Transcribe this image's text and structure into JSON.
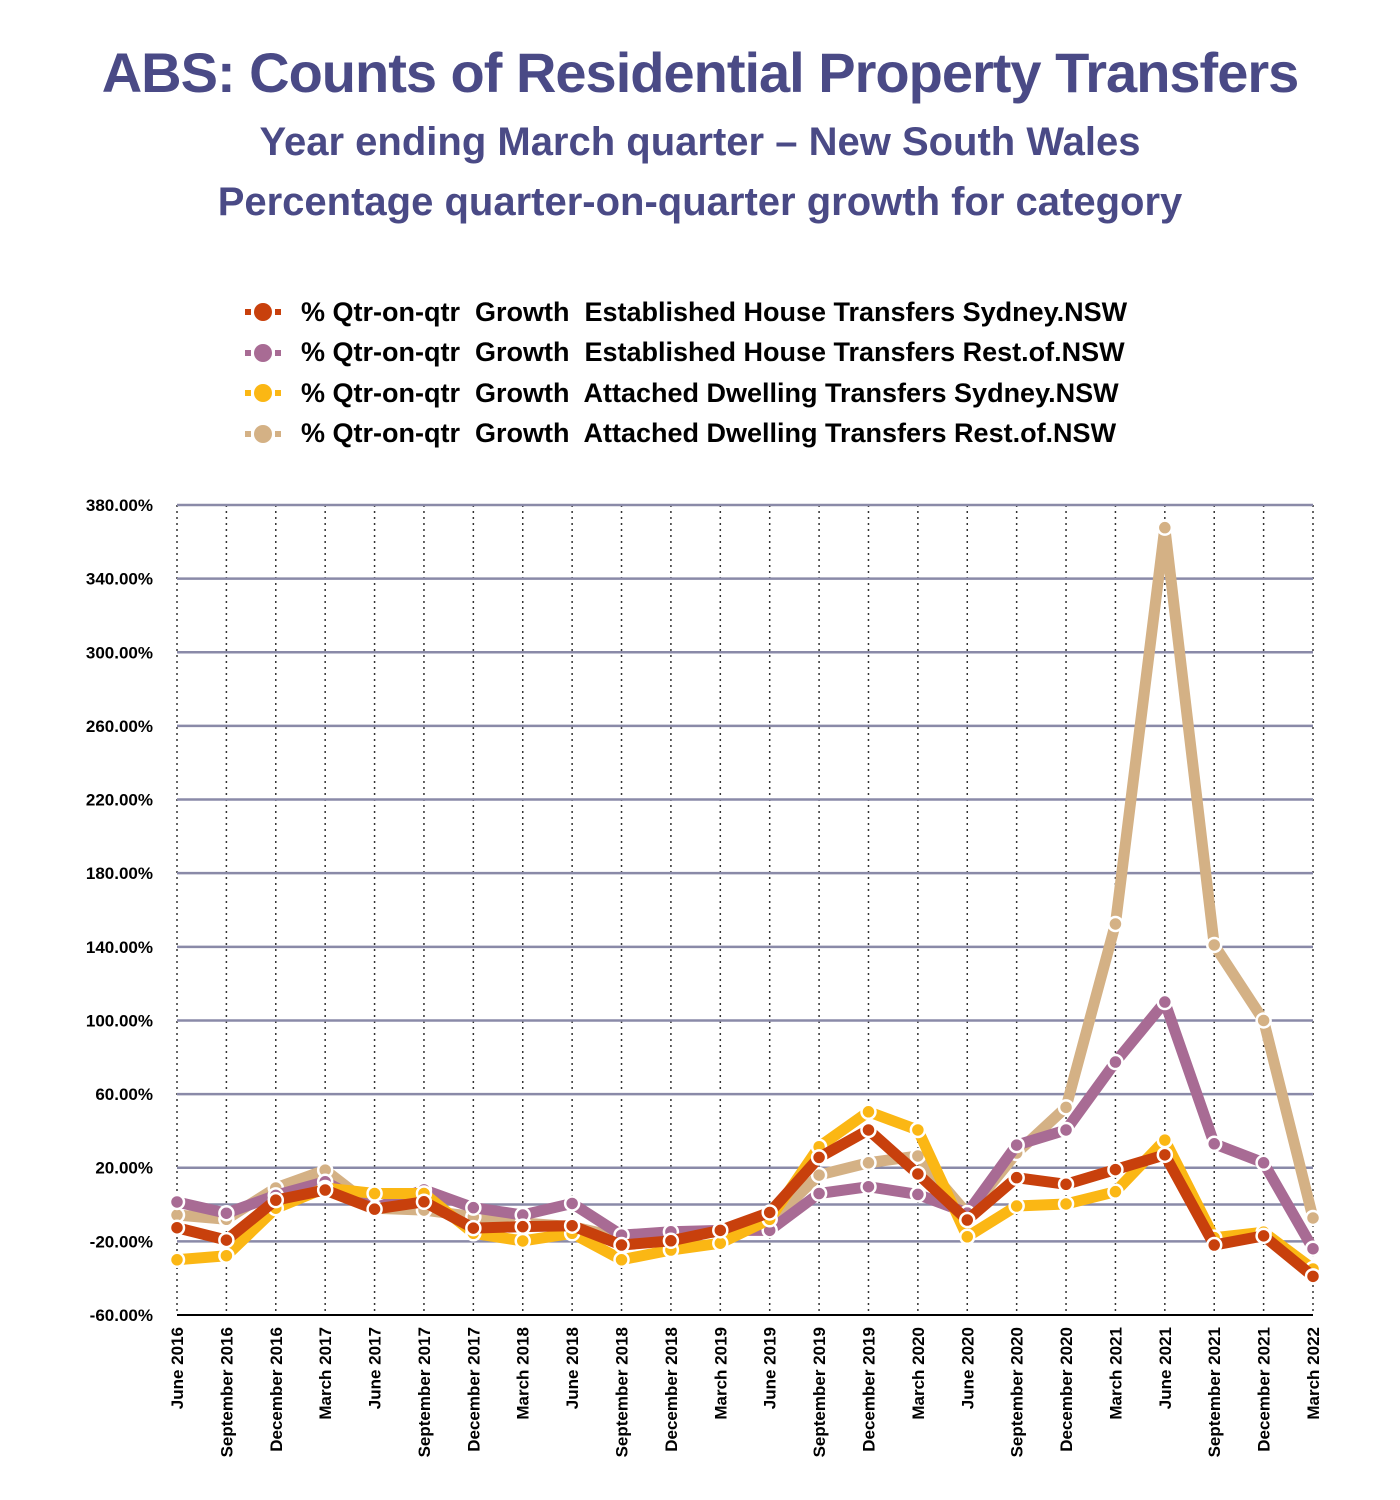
{
  "title": "ABS: Counts of Residential Property Transfers",
  "subtitle1": "Year ending March quarter – New South Wales",
  "subtitle2": "Percentage quarter-on-quarter growth for category",
  "chart_data": {
    "type": "line",
    "title": "ABS: Counts of Residential Property Transfers",
    "xlabel": "",
    "ylabel": "",
    "ylim": [
      -60,
      380
    ],
    "yticks": [
      380,
      340,
      300,
      260,
      220,
      180,
      140,
      100,
      60,
      20,
      -20,
      -60
    ],
    "ytick_labels": [
      "380.00%",
      "340.00%",
      "300.00%",
      "260.00%",
      "220.00%",
      "180.00%",
      "140.00%",
      "100.00%",
      "60.00%",
      "20.00%",
      "-20.00%",
      "-60.00%"
    ],
    "grid": true,
    "legend_position": "top",
    "categories": [
      "June 2016",
      "September 2016",
      "December 2016",
      "March 2017",
      "June 2017",
      "September 2017",
      "December 2017",
      "March 2018",
      "June 2018",
      "September 2018",
      "December 2018",
      "March 2019",
      "June 2019",
      "September 2019",
      "December 2019",
      "March 2020",
      "June 2020",
      "September 2020",
      "December 2020",
      "March 2021",
      "June 2021",
      "September 2021",
      "December 2021",
      "March 2022"
    ],
    "series": [
      {
        "name": "% Qtr-on-qtr  Growth  Established House Transfers Sydney.NSW",
        "color": "#c8400c",
        "values": [
          -12.6,
          -19.3,
          2.4,
          7.9,
          -2.5,
          1.5,
          -12.8,
          -12,
          -11.5,
          -22,
          -19.7,
          -14,
          -4.3,
          25.6,
          40.5,
          16.6,
          -8.4,
          14.6,
          11,
          19,
          27,
          -22,
          -17,
          -39
        ]
      },
      {
        "name": "% Qtr-on-qtr  Growth  Established House Transfers Rest.of.NSW",
        "color": "#a86b94",
        "values": [
          1.4,
          -4.7,
          5,
          12.4,
          -2,
          8,
          -1.7,
          -5.7,
          0.6,
          -16.6,
          -14.8,
          -14,
          -14,
          6,
          9.7,
          5.5,
          -4.6,
          32.3,
          40.5,
          77.4,
          110,
          33,
          22.7,
          -24
        ]
      },
      {
        "name": "% Qtr-on-qtr  Growth  Attached Dwelling Transfers Sydney.NSW",
        "color": "#fbb714",
        "values": [
          -30,
          -27.8,
          -2,
          9,
          6,
          6,
          -15.6,
          -19.8,
          -15.6,
          -30,
          -24.7,
          -21,
          -8,
          31.4,
          50.4,
          40.5,
          -17.5,
          -0.8,
          0.3,
          7,
          35,
          -18,
          -15,
          -35
        ]
      },
      {
        "name": "% Qtr-on-qtr  Growth  Attached Dwelling Transfers Rest.of.NSW",
        "color": "#d4b185",
        "values": [
          -5.7,
          -8,
          9,
          18.7,
          -2,
          -3,
          -6.6,
          -10,
          -12,
          -18,
          -16,
          -15,
          -10,
          16,
          22.7,
          26.4,
          -5,
          28,
          52.8,
          152.4,
          367.7,
          141,
          100,
          -7.3
        ]
      }
    ]
  }
}
